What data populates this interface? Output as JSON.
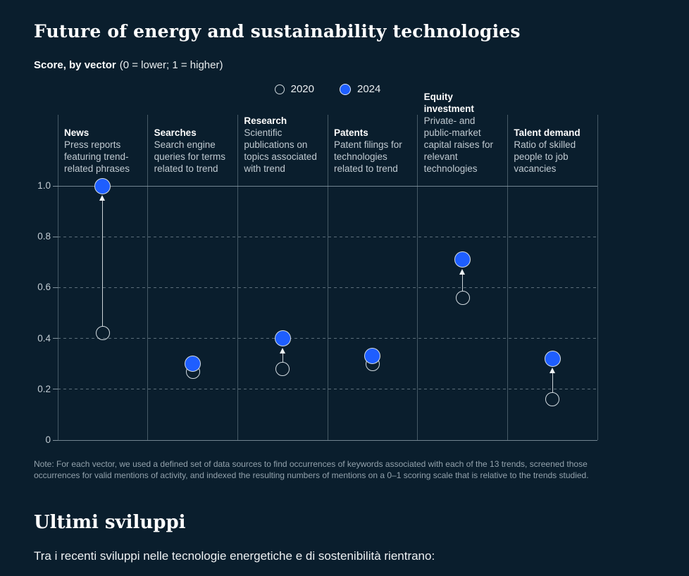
{
  "page": {
    "title": "Future of energy and sustainability technologies",
    "subtitle_bold": "Score, by vector",
    "subtitle_rest": "(0 = lower; 1 = higher)",
    "note": "Note: For each vector, we used a defined set of data sources to find occurrences of keywords associated with each of the 13 trends, screened those occurrences for valid mentions of activity, and indexed the resulting numbers of mentions on a 0–1 scoring scale that is relative to the trends studied.",
    "section_heading": "Ultimi sviluppi",
    "section_intro": "Tra i recenti sviluppi nelle tecnologie energetiche e di sostenibilità rientrano:"
  },
  "legend": {
    "items": [
      {
        "label": "2020",
        "marker": "open-circle"
      },
      {
        "label": "2024",
        "marker": "filled-circle"
      }
    ],
    "position": "top-center"
  },
  "chart_data": {
    "type": "scatter",
    "title": "Future of energy and sustainability technologies",
    "subtitle": "Score, by vector (0 = lower; 1 = higher)",
    "categories": [
      {
        "name": "News",
        "description": "Press reports featuring trend-related phrases"
      },
      {
        "name": "Searches",
        "description": "Search engine queries for terms related to trend"
      },
      {
        "name": "Research",
        "description": "Scientific publications on topics associated with trend"
      },
      {
        "name": "Patents",
        "description": "Patent filings for technologies related to trend"
      },
      {
        "name": "Equity investment",
        "description": "Private- and public-market capital raises for relevant technologies"
      },
      {
        "name": "Talent demand",
        "description": "Ratio of skilled people to job vacancies"
      }
    ],
    "series": [
      {
        "name": "2020",
        "style": "open",
        "values": [
          0.42,
          0.27,
          0.28,
          0.3,
          0.56,
          0.16
        ]
      },
      {
        "name": "2024",
        "style": "filled",
        "values": [
          1.0,
          0.3,
          0.4,
          0.33,
          0.71,
          0.32
        ]
      }
    ],
    "ylim": [
      0,
      1
    ],
    "yticks": [
      0,
      0.2,
      0.4,
      0.6,
      0.8,
      1.0
    ],
    "ytick_labels": [
      "0",
      "0.2",
      "0.4",
      "0.6",
      "0.8",
      "1.0"
    ],
    "grid": "horizontal-dashed, solid at 0 and 1.0",
    "annotations": "white arrows point from 2020 value up to 2024 value in each column"
  },
  "colors": {
    "background": "#0a1e2d",
    "accent_blue": "#1e5eff",
    "dot_border": "#d2dbe0",
    "arrow": "#eef2f4",
    "grid_line": "#8c9eaa",
    "divider": "#91a3ae",
    "text_primary": "#ffffff",
    "text_secondary": "#c0cad1",
    "text_muted": "#93a2ac"
  }
}
